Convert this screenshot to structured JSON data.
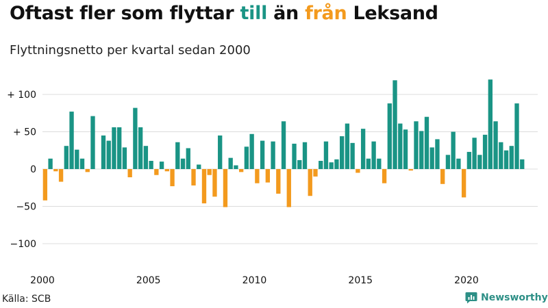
{
  "title": {
    "part1": "Oftast fler som flyttar ",
    "till": "till",
    "part2": " än ",
    "fran": "från",
    "part3": " Leksand"
  },
  "subtitle": "Flyttningsnetto per kvartal sedan 2000",
  "source": "Källa: SCB",
  "brand": "Newsworthy",
  "colors": {
    "positive": "#1a9485",
    "negative": "#f39a1e",
    "title_till": "#1a9485",
    "title_fran": "#f39a1e",
    "grid": "#dcdcdc",
    "axis_text": "#111111"
  },
  "chart_data": {
    "type": "bar",
    "start_year": 2000,
    "period": "quarter",
    "values": [
      -42,
      14,
      -3,
      -17,
      31,
      77,
      26,
      14,
      -4,
      71,
      0,
      45,
      38,
      56,
      56,
      29,
      -11,
      82,
      56,
      31,
      11,
      -8,
      10,
      -3,
      -23,
      36,
      14,
      28,
      -22,
      6,
      -46,
      -8,
      -37,
      45,
      -51,
      15,
      5,
      -4,
      30,
      47,
      -19,
      38,
      -18,
      37,
      -33,
      64,
      -51,
      34,
      12,
      36,
      -36,
      -10,
      11,
      37,
      9,
      13,
      44,
      61,
      35,
      -5,
      54,
      14,
      37,
      14,
      -19,
      88,
      119,
      61,
      53,
      -2,
      64,
      51,
      70,
      29,
      40,
      -20,
      19,
      50,
      14,
      -38,
      23,
      42,
      19,
      46,
      120,
      64,
      36,
      25,
      31,
      88,
      13
    ],
    "y_ticks": [
      {
        "value": 100,
        "label": "+ 100"
      },
      {
        "value": 50,
        "label": "+  50"
      },
      {
        "value": 0,
        "label": "0"
      },
      {
        "value": -50,
        "label": "−50"
      },
      {
        "value": -100,
        "label": "−100"
      }
    ],
    "x_ticks": [
      {
        "year": 2000,
        "label": "2000"
      },
      {
        "year": 2005,
        "label": "2005"
      },
      {
        "year": 2010,
        "label": "2010"
      },
      {
        "year": 2015,
        "label": "2015"
      },
      {
        "year": 2020,
        "label": "2020"
      }
    ],
    "ylim": [
      -120,
      125
    ],
    "grid": true,
    "legend": "none"
  }
}
